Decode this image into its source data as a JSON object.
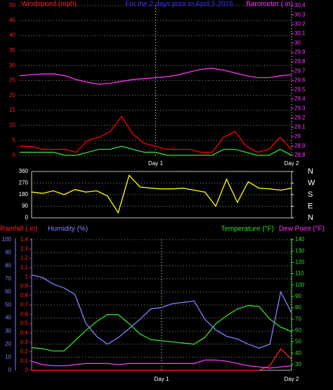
{
  "chart_data": [
    {
      "type": "line",
      "title": "For the 2 days prior to April 5 2016",
      "ylabel": "Windspeed (mph)",
      "y2label": "Barometer (.in)",
      "title_color": "#3333ff",
      "ycolor": "#ff2020",
      "y2color": "#ff33ff",
      "ylim": [
        0,
        50
      ],
      "yticks": [
        0,
        5,
        10,
        15,
        20,
        25,
        30,
        35,
        40,
        45,
        50
      ],
      "y2lim": [
        28.8,
        30.4
      ],
      "y2ticks": [
        28.8,
        28.9,
        29,
        29.1,
        29.2,
        29.3,
        29.4,
        29.5,
        29.6,
        29.7,
        29.8,
        29.9,
        30,
        30.1,
        30.2,
        30.3,
        30.4
      ],
      "x_labels": [
        "Day 1",
        "Day 2"
      ],
      "grid": true,
      "series": [
        {
          "color": "#ff0000",
          "values": [
            3,
            3,
            2,
            2,
            2,
            1,
            5,
            6,
            8,
            13,
            7,
            4,
            3,
            2,
            2,
            2,
            1,
            1,
            6,
            8,
            3,
            1,
            2,
            6,
            2
          ]
        },
        {
          "color": "#33dd33",
          "values": [
            1,
            1,
            1,
            1,
            0,
            0,
            1,
            2,
            2,
            3,
            2,
            1,
            1,
            0,
            0,
            0,
            0,
            0,
            2,
            2,
            1,
            0,
            0,
            2,
            0
          ]
        },
        {
          "color": "#ff33ff",
          "axis": "y2",
          "values": [
            29.65,
            29.66,
            29.67,
            29.67,
            29.65,
            29.61,
            29.58,
            29.56,
            29.57,
            29.59,
            29.61,
            29.62,
            29.63,
            29.64,
            29.66,
            29.69,
            29.72,
            29.73,
            29.71,
            29.68,
            29.65,
            29.63,
            29.63,
            29.65,
            29.66
          ]
        }
      ]
    },
    {
      "type": "line",
      "ycolor": "#ffffff",
      "y2color": "#ffffff",
      "ylim": [
        0,
        360
      ],
      "yticks": [
        0,
        90,
        180,
        270,
        360
      ],
      "y2lim": [
        0,
        360
      ],
      "y2ticks": [
        {
          "value": 360,
          "label": "N"
        },
        {
          "value": 270,
          "label": "W"
        },
        {
          "value": 180,
          "label": "S"
        },
        {
          "value": 90,
          "label": "E"
        },
        {
          "value": 0,
          "label": "N"
        }
      ],
      "series": [
        {
          "color": "#ffff00",
          "values": [
            200,
            190,
            210,
            180,
            220,
            200,
            210,
            170,
            40,
            330,
            240,
            230,
            225,
            225,
            230,
            215,
            200,
            90,
            300,
            120,
            280,
            230,
            225,
            215,
            230
          ]
        }
      ]
    },
    {
      "type": "line",
      "ycolor": "#8080ff",
      "y2color": "#33dd33",
      "y3color": "#ff2020",
      "ylim": [
        0,
        100
      ],
      "yticks": [
        0,
        10,
        20,
        30,
        40,
        50,
        60,
        70,
        80,
        90,
        100
      ],
      "y2lim": [
        25,
        140
      ],
      "y2ticks": [
        30,
        40,
        50,
        60,
        70,
        80,
        90,
        100,
        110,
        120,
        130,
        140
      ],
      "y3lim": [
        0,
        1.4
      ],
      "y3ticks": [
        0,
        0.1,
        0.2,
        0.3,
        0.4,
        0.5,
        0.6,
        0.7,
        0.8,
        0.9,
        1,
        1.1,
        1.2,
        1.3,
        1.4
      ],
      "x_labels": [
        "Day 1",
        "Day 2"
      ],
      "grid": true,
      "series": [
        {
          "name": "Rainfall (.in)",
          "color": "#ff2020",
          "axis": "y3",
          "values": [
            0,
            0,
            0,
            0,
            0,
            0,
            0,
            0,
            0,
            0,
            0,
            0,
            0,
            0,
            0,
            0,
            0,
            0,
            0,
            0,
            0,
            0,
            0.05,
            0.23,
            0.12
          ]
        },
        {
          "name": "Humidity (%)",
          "color": "#8080ff",
          "values": [
            73,
            71,
            66,
            63,
            58,
            36,
            26,
            20,
            25,
            32,
            39,
            47,
            48,
            51,
            52,
            53,
            39,
            31,
            26,
            24,
            20,
            17,
            20,
            60,
            44
          ]
        },
        {
          "name": "Temperature (°F)",
          "color": "#33dd33",
          "axis": "y2",
          "values": [
            45,
            44,
            42,
            42,
            51,
            60,
            68,
            74,
            74,
            66,
            57,
            52,
            51,
            50,
            49,
            48,
            54,
            66,
            73,
            79,
            82,
            81,
            70,
            63,
            59
          ]
        },
        {
          "name": "Dew Point (°F)",
          "color": "#ff33ff",
          "axis": "y2",
          "values": [
            33,
            30,
            29,
            29,
            30,
            31,
            31,
            31,
            30,
            31,
            31,
            31,
            31,
            31,
            31,
            31,
            34,
            34,
            33,
            31,
            29,
            28,
            27,
            28,
            29
          ]
        }
      ]
    }
  ]
}
